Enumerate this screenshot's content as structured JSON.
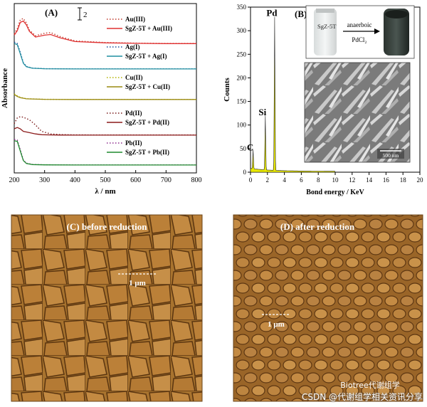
{
  "figure": {
    "panel_a_label": "(A)",
    "panel_b_label": "(B)",
    "panel_c_label": "(C) before reduction",
    "panel_d_label": "(D) after reduction",
    "scale_bar_c": "1 μm",
    "scale_bar_d": "1 μm",
    "scale_bar_sem": "500 nm",
    "inset_left_label": "SgZ-5T",
    "inset_arrow_top": "anaerboic",
    "inset_arrow_bottom": "PdCl₂",
    "watermark": "CSDN @代谢组学相关资讯分享",
    "wechat_tag": "Biotree代谢组学"
  },
  "chart_data": [
    {
      "type": "line",
      "panel": "A",
      "xlabel": "λ / nm",
      "ylabel": "Absorbance",
      "xlim": [
        200,
        800
      ],
      "xticks": [
        200,
        300,
        400,
        500,
        600,
        700,
        800
      ],
      "scale_marker": "2",
      "groups": [
        {
          "metal": "Au(III)",
          "series": [
            {
              "name": "Au(III)",
              "style": "dotted",
              "color": "#c0392b",
              "x": [
                200,
                210,
                220,
                230,
                240,
                250,
                270,
                300,
                320,
                350,
                400,
                500,
                600,
                700,
                800
              ],
              "y": [
                1.6,
                2.4,
                3.8,
                4.0,
                3.3,
                2.2,
                1.3,
                1.7,
                1.8,
                1.2,
                0.5,
                0.25,
                0.15,
                0.1,
                0.1
              ]
            },
            {
              "name": "SgZ-5T + Au(III)",
              "style": "solid",
              "color": "#e03030",
              "x": [
                200,
                210,
                220,
                230,
                240,
                250,
                270,
                300,
                320,
                350,
                400,
                500,
                600,
                700,
                800
              ],
              "y": [
                1.4,
                2.1,
                3.4,
                3.6,
                3.0,
                2.0,
                1.1,
                1.4,
                1.5,
                1.0,
                0.4,
                0.2,
                0.12,
                0.08,
                0.08
              ]
            }
          ]
        },
        {
          "metal": "Ag(I)",
          "series": [
            {
              "name": "Ag(I)",
              "style": "dotted",
              "color": "#1b4f9c",
              "x": [
                200,
                210,
                220,
                230,
                240,
                260,
                300,
                400,
                500,
                600,
                700,
                800
              ],
              "y": [
                4.2,
                4.0,
                2.6,
                1.0,
                0.4,
                0.15,
                0.05,
                0.02,
                0.02,
                0.02,
                0.02,
                0.02
              ]
            },
            {
              "name": "SgZ-5T + Ag(I)",
              "style": "solid",
              "color": "#1f8fa0",
              "x": [
                200,
                210,
                220,
                230,
                240,
                260,
                300,
                400,
                500,
                600,
                700,
                800
              ],
              "y": [
                4.0,
                3.8,
                2.4,
                0.9,
                0.35,
                0.12,
                0.04,
                0.01,
                0.01,
                0.01,
                0.01,
                0.01
              ]
            }
          ]
        },
        {
          "metal": "Cu(II)",
          "series": [
            {
              "name": "Cu(II)",
              "style": "dotted",
              "color": "#b3b300",
              "x": [
                200,
                210,
                220,
                240,
                300,
                400,
                500,
                600,
                700,
                800
              ],
              "y": [
                0.9,
                0.6,
                0.35,
                0.15,
                0.05,
                0.03,
                0.03,
                0.03,
                0.03,
                0.03
              ]
            },
            {
              "name": "SgZ-5T + Cu(II)",
              "style": "solid",
              "color": "#9a8a10",
              "x": [
                200,
                210,
                220,
                240,
                300,
                400,
                500,
                600,
                700,
                800
              ],
              "y": [
                0.8,
                0.5,
                0.3,
                0.12,
                0.04,
                0.02,
                0.02,
                0.02,
                0.02,
                0.02
              ]
            }
          ]
        },
        {
          "metal": "Pd(II)",
          "series": [
            {
              "name": "Pd(II)",
              "style": "dotted",
              "color": "#7a1a1a",
              "x": [
                200,
                210,
                220,
                230,
                240,
                250,
                270,
                290,
                320,
                350,
                400,
                500,
                600,
                700,
                800
              ],
              "y": [
                1.8,
                2.7,
                2.9,
                2.8,
                2.6,
                2.4,
                1.6,
                0.6,
                0.2,
                0.1,
                0.05,
                0.03,
                0.03,
                0.03,
                0.03
              ]
            },
            {
              "name": "SgZ-5T + Pd(II)",
              "style": "solid",
              "color": "#8b1a1a",
              "x": [
                200,
                210,
                220,
                230,
                240,
                250,
                270,
                290,
                320,
                350,
                400,
                500,
                600,
                700,
                800
              ],
              "y": [
                1.0,
                1.2,
                1.0,
                0.6,
                0.5,
                0.4,
                0.2,
                0.08,
                0.04,
                0.02,
                0.01,
                0.01,
                0.01,
                0.01,
                0.01
              ]
            }
          ]
        },
        {
          "metal": "Pb(II)",
          "series": [
            {
              "name": "Pb(II)",
              "style": "dotted",
              "color": "#8e2c8e",
              "x": [
                200,
                210,
                220,
                230,
                240,
                260,
                300,
                400,
                500,
                600,
                700,
                800
              ],
              "y": [
                4.0,
                3.9,
                2.4,
                0.8,
                0.3,
                0.1,
                0.04,
                0.02,
                0.02,
                0.02,
                0.02,
                0.02
              ]
            },
            {
              "name": "SgZ-5T + Pb(II)",
              "style": "solid",
              "color": "#1e8a2e",
              "x": [
                200,
                210,
                220,
                230,
                240,
                260,
                300,
                400,
                500,
                600,
                700,
                800
              ],
              "y": [
                3.8,
                3.7,
                2.2,
                0.7,
                0.25,
                0.08,
                0.03,
                0.01,
                0.01,
                0.01,
                0.01,
                0.01
              ]
            }
          ]
        }
      ]
    },
    {
      "type": "bar",
      "panel": "B",
      "xlabel": "Bond energy / KeV",
      "ylabel": "Counts",
      "xlim": [
        0,
        20
      ],
      "ylim": [
        0,
        350
      ],
      "xticks": [
        0,
        2,
        4,
        6,
        8,
        10,
        12,
        14,
        16,
        18,
        20
      ],
      "yticks": [
        0,
        50,
        100,
        150,
        200,
        250,
        300,
        350
      ],
      "peaks": [
        {
          "label": "C",
          "energy": 0.3,
          "counts": 40
        },
        {
          "label": "Si",
          "energy": 1.75,
          "counts": 115
        },
        {
          "label": "Pd",
          "energy": 2.85,
          "counts": 325
        }
      ],
      "fill_color": "#e8e800"
    }
  ]
}
